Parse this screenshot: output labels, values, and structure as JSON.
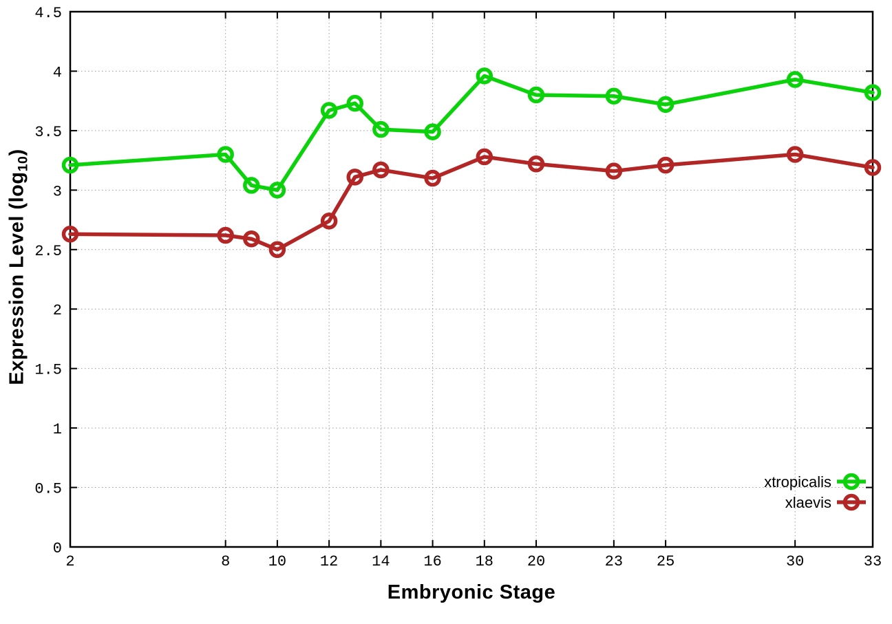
{
  "chart_data": {
    "type": "line",
    "title": "",
    "xlabel": "Embryonic Stage",
    "ylabel": "Expression Level (log10)",
    "ylabel_parts": {
      "main": "Expression Level (log",
      "sub": "10",
      "close": ")"
    },
    "x": [
      2,
      8,
      9,
      10,
      12,
      13,
      14,
      16,
      18,
      20,
      23,
      25,
      30,
      33
    ],
    "series": [
      {
        "name": "xtropicalis",
        "color": "#0cd20c",
        "values": [
          3.21,
          3.3,
          3.04,
          3.0,
          3.67,
          3.73,
          3.51,
          3.49,
          3.96,
          3.8,
          3.79,
          3.72,
          3.93,
          3.82
        ]
      },
      {
        "name": "xlaevis",
        "color": "#b22626",
        "values": [
          2.63,
          2.62,
          2.59,
          2.5,
          2.74,
          3.11,
          3.17,
          3.1,
          3.28,
          3.22,
          3.16,
          3.21,
          3.3,
          3.19
        ]
      }
    ],
    "xlim": [
      2,
      33
    ],
    "ylim": [
      0,
      4.5
    ],
    "xticks": {
      "values": [
        2,
        8,
        10,
        12,
        14,
        16,
        18,
        20,
        23,
        25,
        30,
        33
      ],
      "labels": [
        "2",
        "8",
        "10",
        "12",
        "14",
        "16",
        "18",
        "20",
        "23",
        "25",
        "30",
        "33"
      ]
    },
    "yticks": {
      "values": [
        0,
        0.5,
        1,
        1.5,
        2,
        2.5,
        3,
        3.5,
        4,
        4.5
      ],
      "labels": [
        "0",
        "0.5",
        "1",
        "1.5",
        "2",
        "2.5",
        "3",
        "3.5",
        "4",
        "4.5"
      ]
    },
    "grid": "dotted",
    "legend_position": "bottom-right",
    "marker": "open-circle"
  },
  "colors": {
    "background": "#ffffff",
    "axis": "#000000",
    "grid": "#9b9b9b",
    "text": "#000000",
    "xtropicalis": "#0cd20c",
    "xlaevis": "#b22626"
  }
}
